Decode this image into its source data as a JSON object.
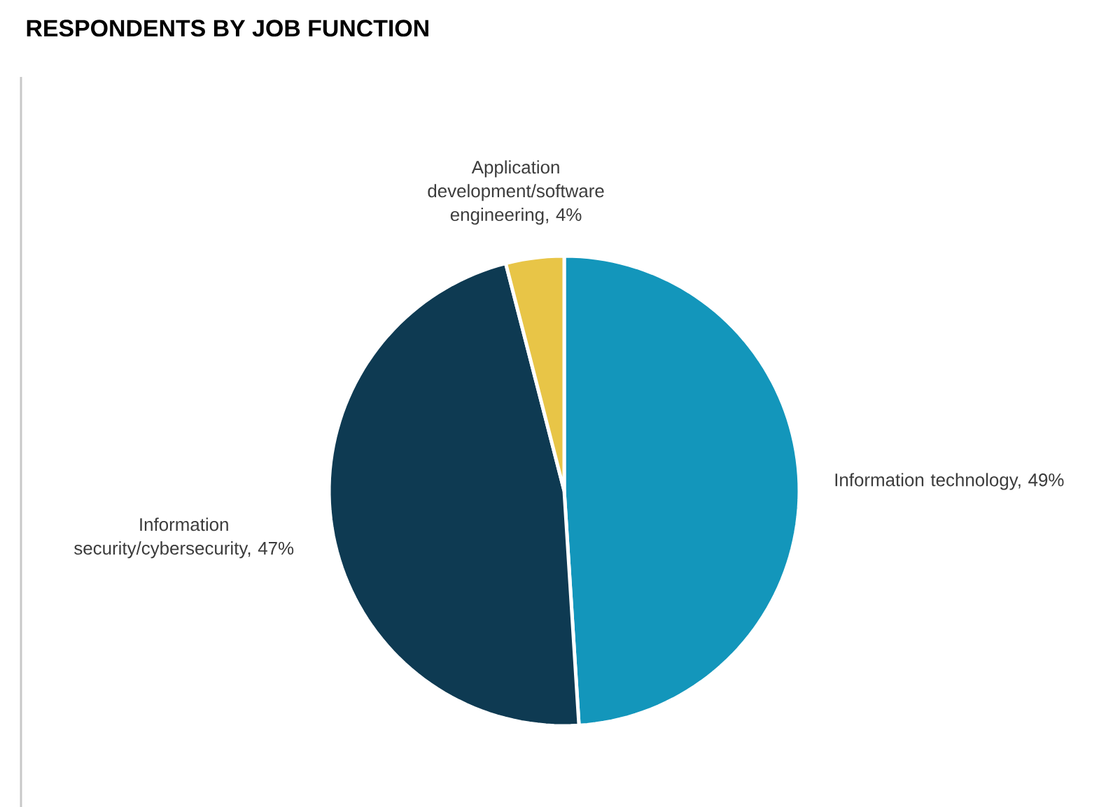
{
  "chart_data": {
    "type": "pie",
    "title": "RESPONDENTS BY JOB FUNCTION",
    "categories": [
      "Information technology, 49%",
      "Information security/cybersecurity, 47%",
      "Application development/software engineering, 4%"
    ],
    "values": [
      49,
      47,
      4
    ],
    "colors": [
      "#1396bb",
      "#0e3a52",
      "#e8c547"
    ]
  }
}
